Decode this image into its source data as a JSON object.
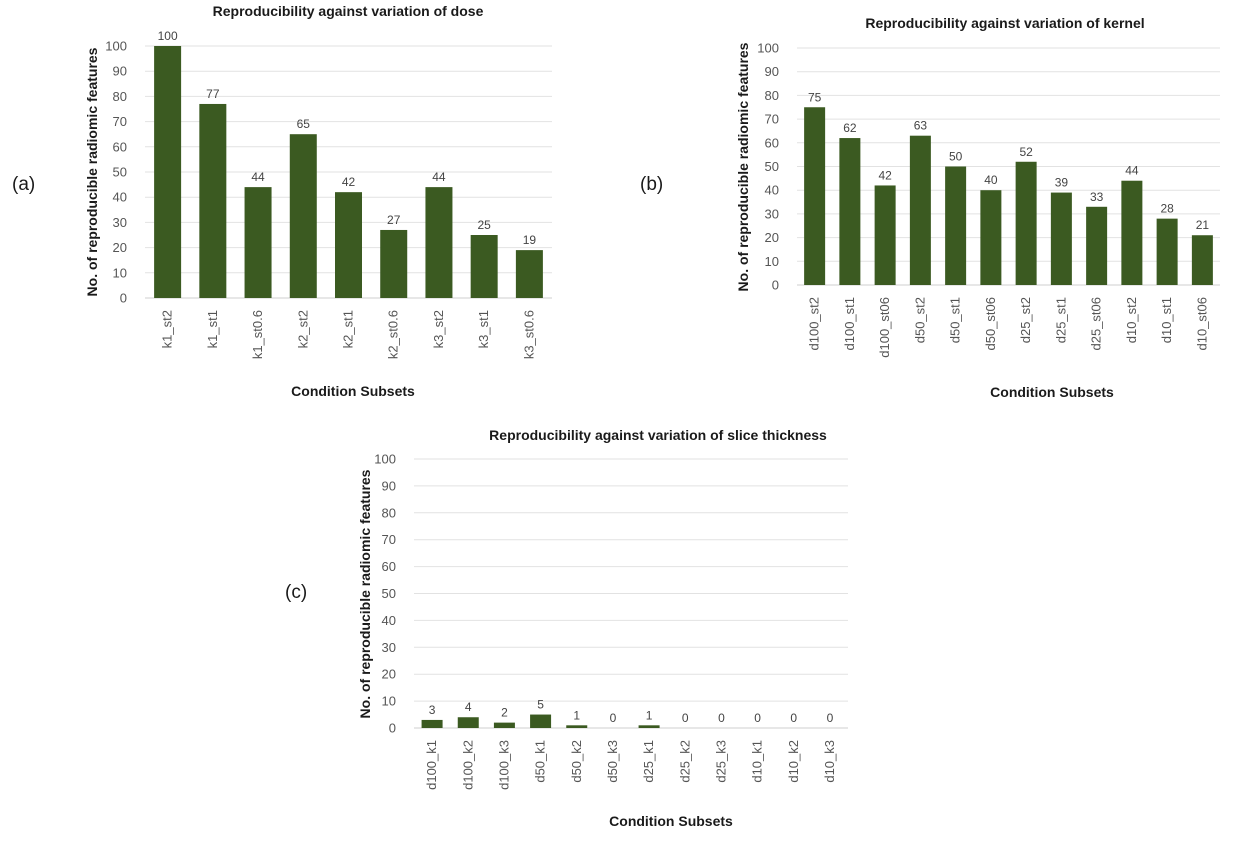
{
  "colors": {
    "bar": "#3b5a21"
  },
  "chart_data": [
    {
      "type": "bar",
      "panel_label": "(a)",
      "title": "Reproducibility against variation of dose",
      "xlabel": "Condition Subsets",
      "ylabel": "No. of reproducible radiomic features",
      "ylim": [
        0,
        100
      ],
      "yticks": [
        0,
        10,
        20,
        30,
        40,
        50,
        60,
        70,
        80,
        90,
        100
      ],
      "grid": true,
      "categories": [
        "k1_st2",
        "k1_st1",
        "k1_st0.6",
        "k2_st2",
        "k2_st1",
        "k2_st0.6",
        "k3_st2",
        "k3_st1",
        "k3_st0.6"
      ],
      "values": [
        100,
        77,
        44,
        65,
        42,
        27,
        44,
        25,
        19
      ]
    },
    {
      "type": "bar",
      "panel_label": "(b)",
      "title": "Reproducibility against variation of kernel",
      "xlabel": "Condition Subsets",
      "ylabel": "No. of reproducible radiomic features",
      "ylim": [
        0,
        100
      ],
      "yticks": [
        0,
        10,
        20,
        30,
        40,
        50,
        60,
        70,
        80,
        90,
        100
      ],
      "grid": true,
      "categories": [
        "d100_st2",
        "d100_st1",
        "d100_st06",
        "d50_st2",
        "d50_st1",
        "d50_st06",
        "d25_st2",
        "d25_st1",
        "d25_st06",
        "d10_st2",
        "d10_st1",
        "d10_st06"
      ],
      "values": [
        75,
        62,
        42,
        63,
        50,
        40,
        52,
        39,
        33,
        44,
        28,
        21
      ]
    },
    {
      "type": "bar",
      "panel_label": "(c)",
      "title": "Reproducibility against variation of slice thickness",
      "xlabel": "Condition Subsets",
      "ylabel": "No. of reproducible radiomic features",
      "ylim": [
        0,
        100
      ],
      "yticks": [
        0,
        10,
        20,
        30,
        40,
        50,
        60,
        70,
        80,
        90,
        100
      ],
      "grid": true,
      "categories": [
        "d100_k1",
        "d100_k2",
        "d100_k3",
        "d50_k1",
        "d50_k2",
        "d50_k3",
        "d25_k1",
        "d25_k2",
        "d25_k3",
        "d10_k1",
        "d10_k2",
        "d10_k3"
      ],
      "values": [
        3,
        4,
        2,
        5,
        1,
        0,
        1,
        0,
        0,
        0,
        0,
        0
      ]
    }
  ]
}
